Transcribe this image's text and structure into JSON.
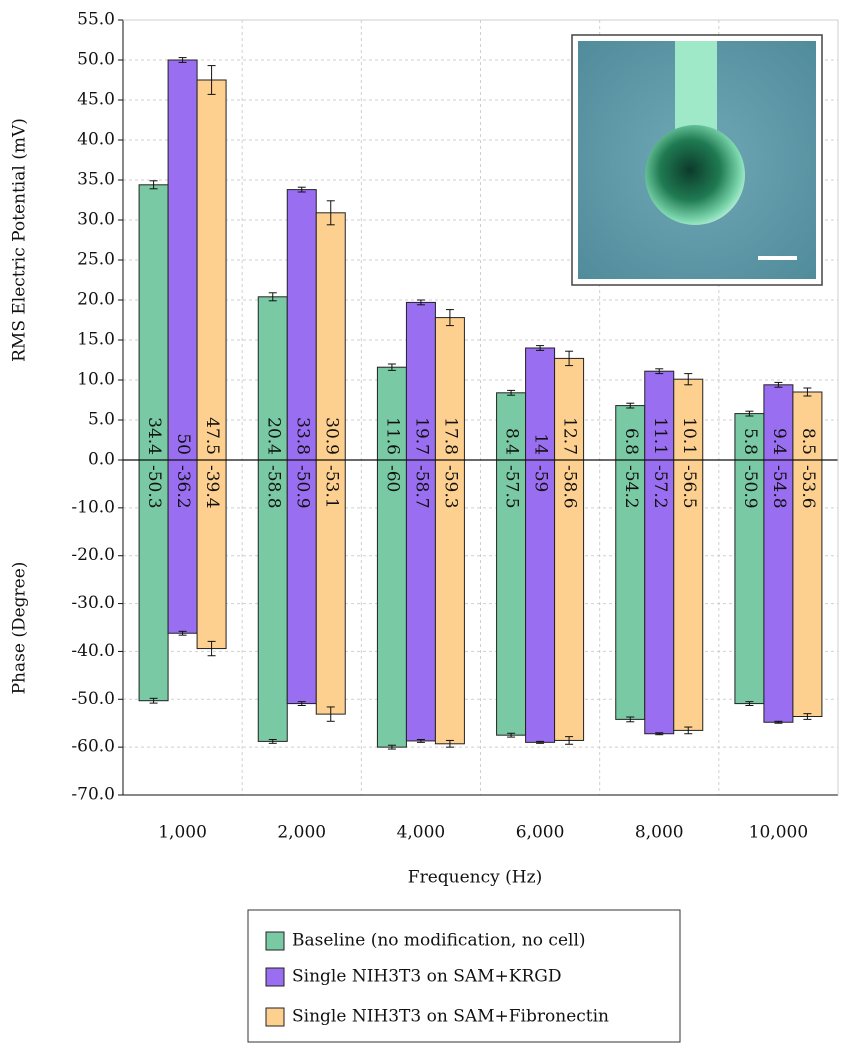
{
  "chart_data": {
    "type": "bar",
    "xlabel": "Frequency (Hz)",
    "ylabel": "RMS Electric Potential (mV)",
    "y2label": "Phase (Degree)",
    "categories": [
      "1,000",
      "2,000",
      "4,000",
      "6,000",
      "8,000",
      "10,000"
    ],
    "series": [
      {
        "name": "Baseline (no modification, no cell)",
        "color": "#79c9a4",
        "values": [
          34.4,
          20.4,
          11.6,
          8.4,
          6.8,
          5.8
        ],
        "errors": [
          0.5,
          0.5,
          0.4,
          0.3,
          0.3,
          0.3
        ],
        "phase_values": [
          -50.3,
          -58.8,
          -60.0,
          -57.5,
          -54.2,
          -50.9
        ],
        "phase_errors": [
          0.5,
          0.4,
          0.4,
          0.4,
          0.5,
          0.4
        ]
      },
      {
        "name": "Single NIH3T3 on SAM+KRGD",
        "color": "#9a6ef0",
        "values": [
          50.0,
          33.8,
          19.7,
          14.0,
          11.1,
          9.4
        ],
        "errors": [
          0.3,
          0.3,
          0.3,
          0.3,
          0.3,
          0.3
        ],
        "phase_values": [
          -36.2,
          -50.9,
          -58.7,
          -59.0,
          -57.2,
          -54.8
        ],
        "phase_errors": [
          0.4,
          0.4,
          0.3,
          0.2,
          0.2,
          0.2
        ]
      },
      {
        "name": "Single NIH3T3 on SAM+Fibronectin",
        "color": "#fdd08f",
        "values": [
          47.5,
          30.9,
          17.8,
          12.7,
          10.1,
          8.5
        ],
        "errors": [
          1.8,
          1.5,
          1.0,
          0.9,
          0.7,
          0.5
        ],
        "phase_values": [
          -39.4,
          -53.1,
          -59.3,
          -58.6,
          -56.5,
          -53.6
        ],
        "phase_errors": [
          1.5,
          1.5,
          0.7,
          0.8,
          0.7,
          0.6
        ]
      }
    ],
    "ylim": [
      0,
      55
    ],
    "yticks": [
      {
        "value": 0,
        "label": "0.0"
      },
      {
        "value": 5,
        "label": "5.0"
      },
      {
        "value": 10,
        "label": "10.0"
      },
      {
        "value": 15,
        "label": "15.0"
      },
      {
        "value": 20,
        "label": "20.0"
      },
      {
        "value": 25,
        "label": "25.0"
      },
      {
        "value": 30,
        "label": "30.0"
      },
      {
        "value": 35,
        "label": "35.0"
      },
      {
        "value": 40,
        "label": "40.0"
      },
      {
        "value": 45,
        "label": "45.0"
      },
      {
        "value": 50,
        "label": "50.0"
      },
      {
        "value": 55,
        "label": "55.0"
      }
    ],
    "y2lim": [
      -70,
      0
    ],
    "y2ticks": [
      {
        "value": -10,
        "label": "-10.0"
      },
      {
        "value": -20,
        "label": "-20.0"
      },
      {
        "value": -30,
        "label": "-30.0"
      },
      {
        "value": -40,
        "label": "-40.0"
      },
      {
        "value": -50,
        "label": "-50.0"
      },
      {
        "value": -60,
        "label": "-60.0"
      },
      {
        "value": -70,
        "label": "-70.0"
      }
    ],
    "grid": true,
    "legend": "bottom"
  }
}
